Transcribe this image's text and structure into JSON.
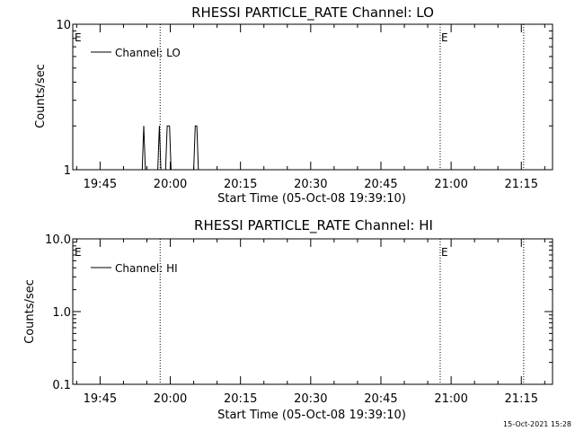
{
  "page": {
    "footer_timestamp": "15-Oct-2021 15:28"
  },
  "chart_data": [
    {
      "type": "line",
      "title": "RHESSI PARTICLE_RATE Channel: LO",
      "xlabel": "Start Time (05-Oct-08 19:39:10)",
      "ylabel": "Counts/sec",
      "y_scale": "log",
      "ylim": [
        1,
        10
      ],
      "y_ticks": [
        1,
        10
      ],
      "y_tick_labels": [
        "1",
        "10"
      ],
      "xlim": [
        "19:39:10",
        "21:21:40"
      ],
      "x_ticks": [
        "19:45",
        "20:00",
        "20:15",
        "20:30",
        "20:45",
        "21:00",
        "21:15"
      ],
      "legend": {
        "position": "top-left",
        "entries": [
          "Channel: LO"
        ]
      },
      "markers": [
        {
          "time": "19:37:30",
          "label": "E"
        },
        {
          "time": "19:57:50",
          "label": ""
        },
        {
          "time": "20:57:40",
          "label": "E"
        },
        {
          "time": "21:15:30",
          "label": ""
        }
      ],
      "series": [
        {
          "name": "Channel: LO",
          "points": [
            [
              "19:39:10",
              1
            ],
            [
              "19:54:00",
              1
            ],
            [
              "19:54:20",
              2
            ],
            [
              "19:54:40",
              1
            ],
            [
              "19:57:20",
              1
            ],
            [
              "19:57:40",
              2
            ],
            [
              "19:58:00",
              1
            ],
            [
              "19:59:00",
              1
            ],
            [
              "19:59:20",
              2
            ],
            [
              "19:59:50",
              2
            ],
            [
              "20:00:10",
              1
            ],
            [
              "20:05:00",
              1
            ],
            [
              "20:05:20",
              2
            ],
            [
              "20:05:40",
              2
            ],
            [
              "20:06:00",
              1
            ],
            [
              "21:21:40",
              1
            ]
          ]
        }
      ]
    },
    {
      "type": "line",
      "title": "RHESSI PARTICLE_RATE Channel: HI",
      "xlabel": "Start Time (05-Oct-08 19:39:10)",
      "ylabel": "Counts/sec",
      "y_scale": "log",
      "ylim": [
        0.1,
        10
      ],
      "y_ticks": [
        0.1,
        1,
        10
      ],
      "y_tick_labels": [
        "0.1",
        "1.0",
        "10.0"
      ],
      "xlim": [
        "19:39:10",
        "21:21:40"
      ],
      "x_ticks": [
        "19:45",
        "20:00",
        "20:15",
        "20:30",
        "20:45",
        "21:00",
        "21:15"
      ],
      "legend": {
        "position": "top-left",
        "entries": [
          "Channel: HI"
        ]
      },
      "markers": [
        {
          "time": "19:37:30",
          "label": "E"
        },
        {
          "time": "19:57:50",
          "label": ""
        },
        {
          "time": "20:57:40",
          "label": "E"
        },
        {
          "time": "21:15:30",
          "label": ""
        }
      ],
      "series": [
        {
          "name": "Channel: HI",
          "points": []
        }
      ]
    }
  ]
}
